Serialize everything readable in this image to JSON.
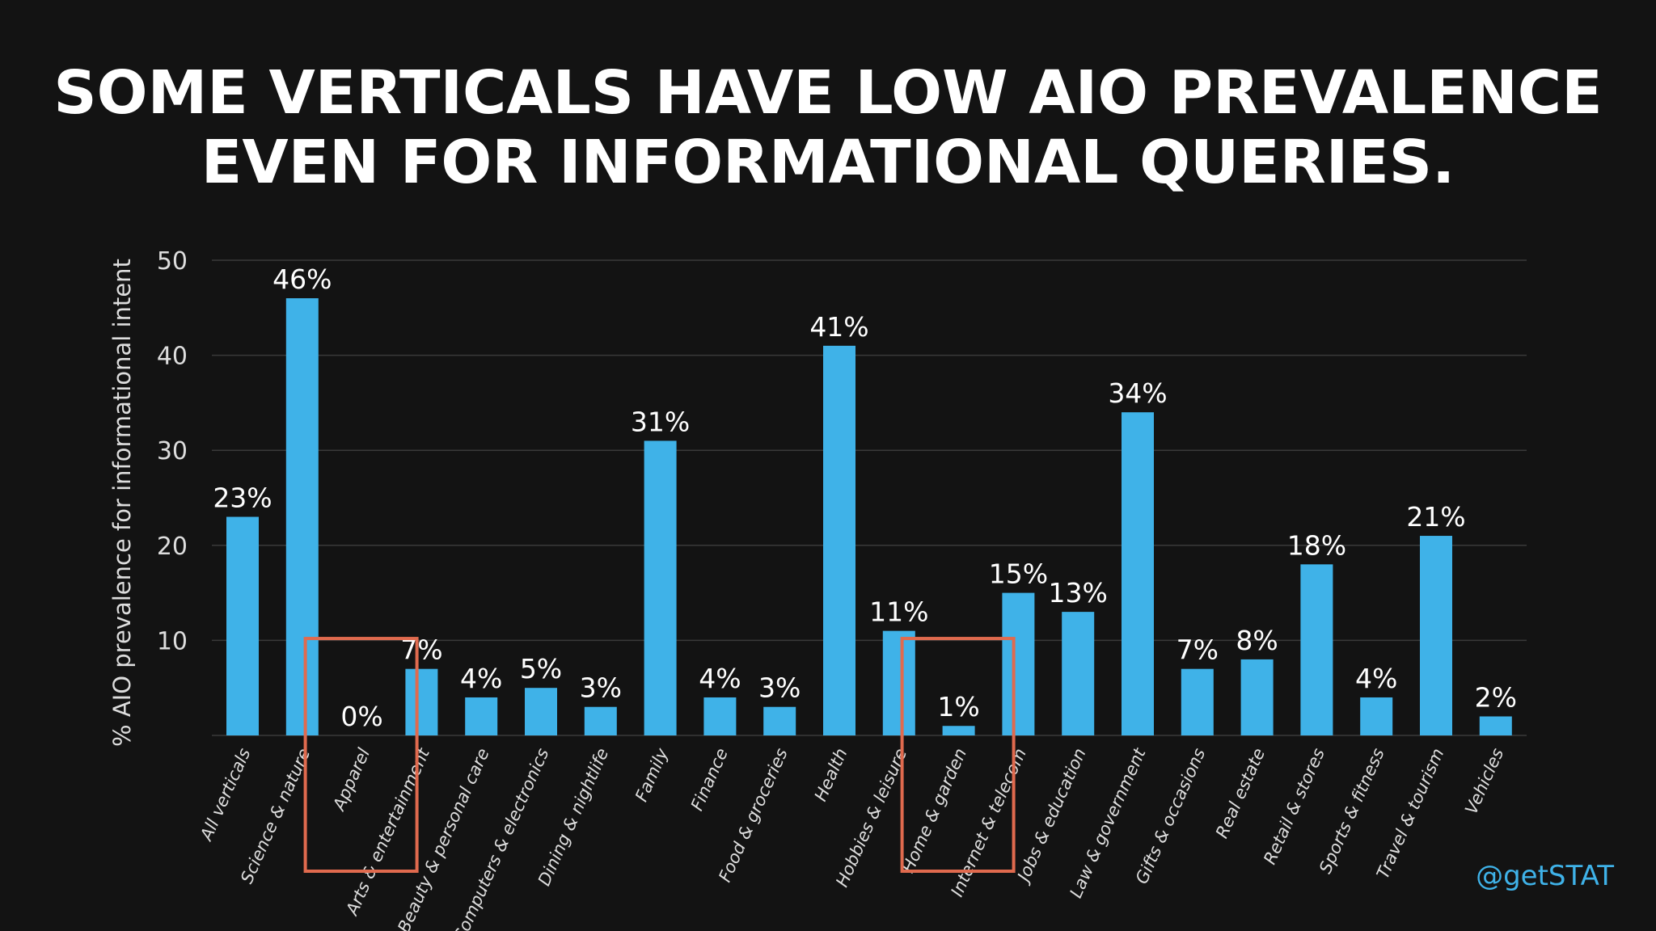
{
  "slide": {
    "title_lines": [
      "SOME VERTICALS HAVE LOW AIO PREVALENCE",
      "EVEN FOR INFORMATIONAL QUERIES."
    ],
    "handle": "@getSTAT"
  },
  "colors": {
    "background": "#131313",
    "bar": "#3fb2e8",
    "grid": "#3a3a3a",
    "text": "#ffffff",
    "axis_text": "#dddddd",
    "highlight_box": "#e06a4e",
    "handle": "#3fb2e8"
  },
  "chart_data": {
    "type": "bar",
    "title": "",
    "xlabel": "",
    "ylabel": "% AIO prevalence for informational intent",
    "ylim": [
      0,
      50
    ],
    "yticks": [
      10,
      20,
      30,
      40,
      50
    ],
    "grid": true,
    "categories": [
      "All verticals",
      "Science & nature",
      "Apparel",
      "Arts & entertainment",
      "Beauty & personal care",
      "Computers & electronics",
      "Dining & nightlife",
      "Family",
      "Finance",
      "Food & groceries",
      "Health",
      "Hobbies & leisure",
      "Home & garden",
      "Internet & telecom",
      "Jobs & education",
      "Law & government",
      "Gifts & occasions",
      "Real estate",
      "Retail & stores",
      "Sports & fitness",
      "Travel & tourism",
      "Vehicles"
    ],
    "values": [
      23,
      46,
      0,
      7,
      4,
      5,
      3,
      31,
      4,
      3,
      41,
      11,
      1,
      15,
      13,
      34,
      7,
      8,
      18,
      4,
      21,
      2
    ],
    "data_labels": [
      "23%",
      "46%",
      "0%",
      "7%",
      "4%",
      "5%",
      "3%",
      "31%",
      "4%",
      "3%",
      "41%",
      "11%",
      "1%",
      "15%",
      "13%",
      "34%",
      "7%",
      "8%",
      "18%",
      "4%",
      "21%",
      "2%"
    ],
    "highlighted_categories": [
      "Apparel",
      "Home & garden"
    ]
  }
}
